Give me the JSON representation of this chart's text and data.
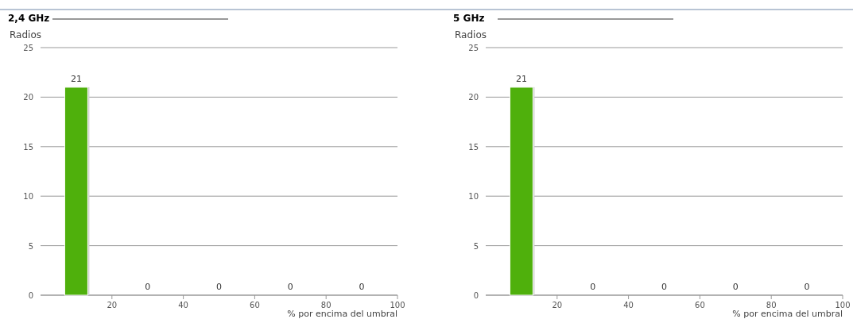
{
  "chart_data": [
    {
      "type": "bar",
      "title": "2,4 GHz",
      "ylabel": "Radios",
      "xlabel": "% por encima del umbral",
      "x": [
        10,
        30,
        50,
        70,
        90
      ],
      "values": [
        21,
        0,
        0,
        0,
        0
      ],
      "color": "#4fb00c",
      "data_labels": true,
      "xlim": [
        0,
        100
      ],
      "xticks": [
        20,
        40,
        60,
        80,
        100
      ],
      "ylim": [
        0,
        25
      ],
      "yticks": [
        0,
        5,
        10,
        15,
        20,
        25
      ],
      "grid": "y"
    },
    {
      "type": "bar",
      "title": "5 GHz",
      "ylabel": "Radios",
      "xlabel": "% por encima del umbral",
      "x": [
        10,
        30,
        50,
        70,
        90
      ],
      "values": [
        21,
        0,
        0,
        0,
        0
      ],
      "color": "#4fb00c",
      "data_labels": true,
      "xlim": [
        0,
        100
      ],
      "xticks": [
        20,
        40,
        60,
        80,
        100
      ],
      "ylim": [
        0,
        25
      ],
      "yticks": [
        0,
        5,
        10,
        15,
        20,
        25
      ],
      "grid": "y"
    }
  ]
}
